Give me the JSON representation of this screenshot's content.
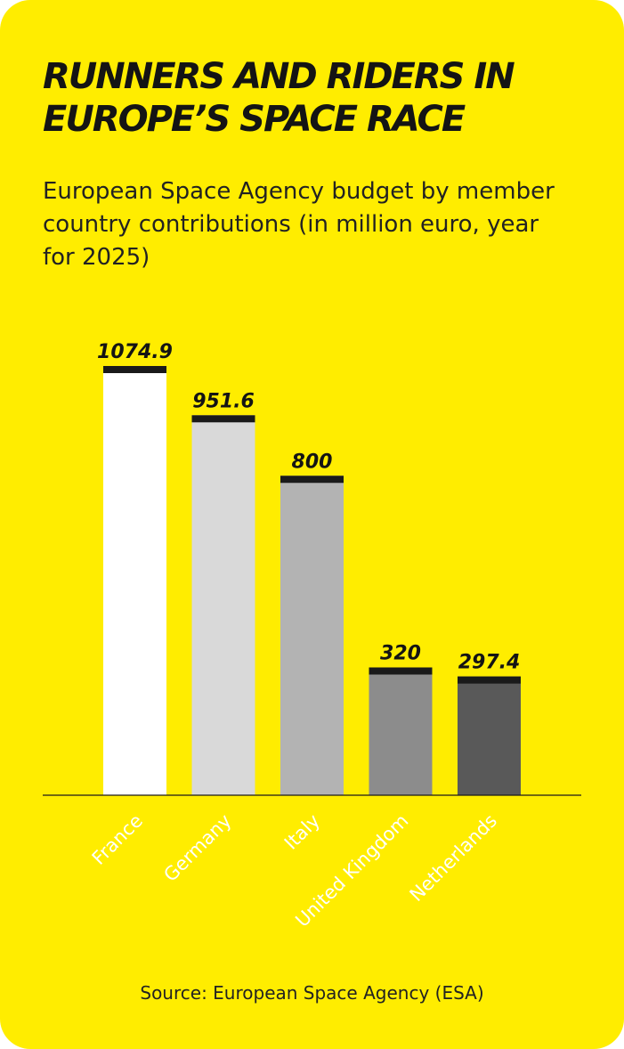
{
  "theme": {
    "background": "#ffed00",
    "bar_cap": "#1a1a1a",
    "baseline": "#1a1a1a"
  },
  "header": {
    "title_lines": [
      "RUNNERS AND RIDERS IN",
      "EUROPE’S SPACE RACE"
    ],
    "subtitle_lines": [
      "European Space Agency budget by member",
      "country contributions (in million euro, year",
      "for 2025)"
    ]
  },
  "footer": {
    "source": "Source: European Space Agency (ESA)"
  },
  "chart_data": {
    "type": "bar",
    "title": "RUNNERS AND RIDERS IN EUROPE’S SPACE RACE",
    "subtitle": "European Space Agency budget by member country contributions (in million euro, year for 2025)",
    "categories": [
      "France",
      "Germany",
      "Italy",
      "United Kingdom",
      "Netherlands"
    ],
    "values": [
      1074.9,
      951.6,
      800,
      320,
      297.4
    ],
    "value_labels": [
      "1074.9",
      "951.6",
      "800",
      "320",
      "297.4"
    ],
    "bar_colors": [
      "#ffffff",
      "#d9d9d9",
      "#b3b3b3",
      "#8c8c8c",
      "#595959"
    ],
    "xlabel": "",
    "ylabel": "",
    "ylim": [
      0,
      1074.9
    ],
    "grid": false,
    "legend": "none",
    "data_labels": "above-bars",
    "x_tick_rotation": "-45deg"
  }
}
